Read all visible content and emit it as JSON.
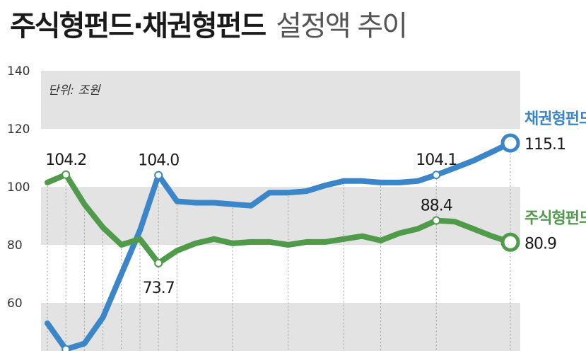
{
  "title": "주식형펀드·채권형펀드",
  "subtitle": "설정액 추이",
  "colors": {
    "bond": "#3a86c8",
    "stock": "#4f9b4a",
    "band": "#e3e3e3",
    "marker_fill": "#ffffff"
  },
  "chart_data": {
    "type": "line",
    "unit": "단위: 조원",
    "ylim": [
      40,
      140
    ],
    "yticks": [
      60,
      80,
      100,
      120,
      140
    ],
    "band_ranges": [
      [
        40,
        60
      ],
      [
        80,
        100
      ],
      [
        120,
        140
      ]
    ],
    "x": [
      0,
      1,
      2,
      3,
      4,
      5,
      6,
      7,
      8,
      9,
      10,
      11,
      12,
      13,
      14,
      15,
      16,
      17,
      18,
      19,
      20,
      21,
      22,
      23,
      24,
      25
    ],
    "series": [
      {
        "key": "bond",
        "name": "채권형펀드",
        "values": [
          53,
          44,
          46,
          55,
          70,
          85,
          104.0,
          95,
          94.5,
          94.5,
          94,
          93.5,
          98,
          98,
          98.5,
          100.5,
          102,
          102,
          101.5,
          101.5,
          102,
          104.1,
          106.5,
          109,
          112,
          115.1
        ],
        "end_value": "115.1"
      },
      {
        "key": "stock",
        "name": "주식형펀드",
        "values": [
          101.5,
          104.2,
          94,
          86,
          80,
          82,
          73.7,
          78,
          80.5,
          82,
          80.5,
          81,
          81,
          80,
          81,
          81,
          82,
          83,
          81.5,
          84,
          85.5,
          88.4,
          88,
          85.5,
          83,
          80.9
        ],
        "end_value": "80.9"
      }
    ],
    "annotations": [
      {
        "series": "stock",
        "index": 1,
        "label": "104.2"
      },
      {
        "series": "bond",
        "index": 6,
        "label": "104.0"
      },
      {
        "series": "stock",
        "index": 6,
        "label": "73.7"
      },
      {
        "series": "bond",
        "index": 21,
        "label": "104.1"
      },
      {
        "series": "stock",
        "index": 21,
        "label": "88.4"
      }
    ],
    "guide_indices": [
      0,
      1,
      2,
      3,
      4,
      5,
      6,
      7,
      10,
      13,
      16,
      18,
      21,
      25
    ]
  }
}
